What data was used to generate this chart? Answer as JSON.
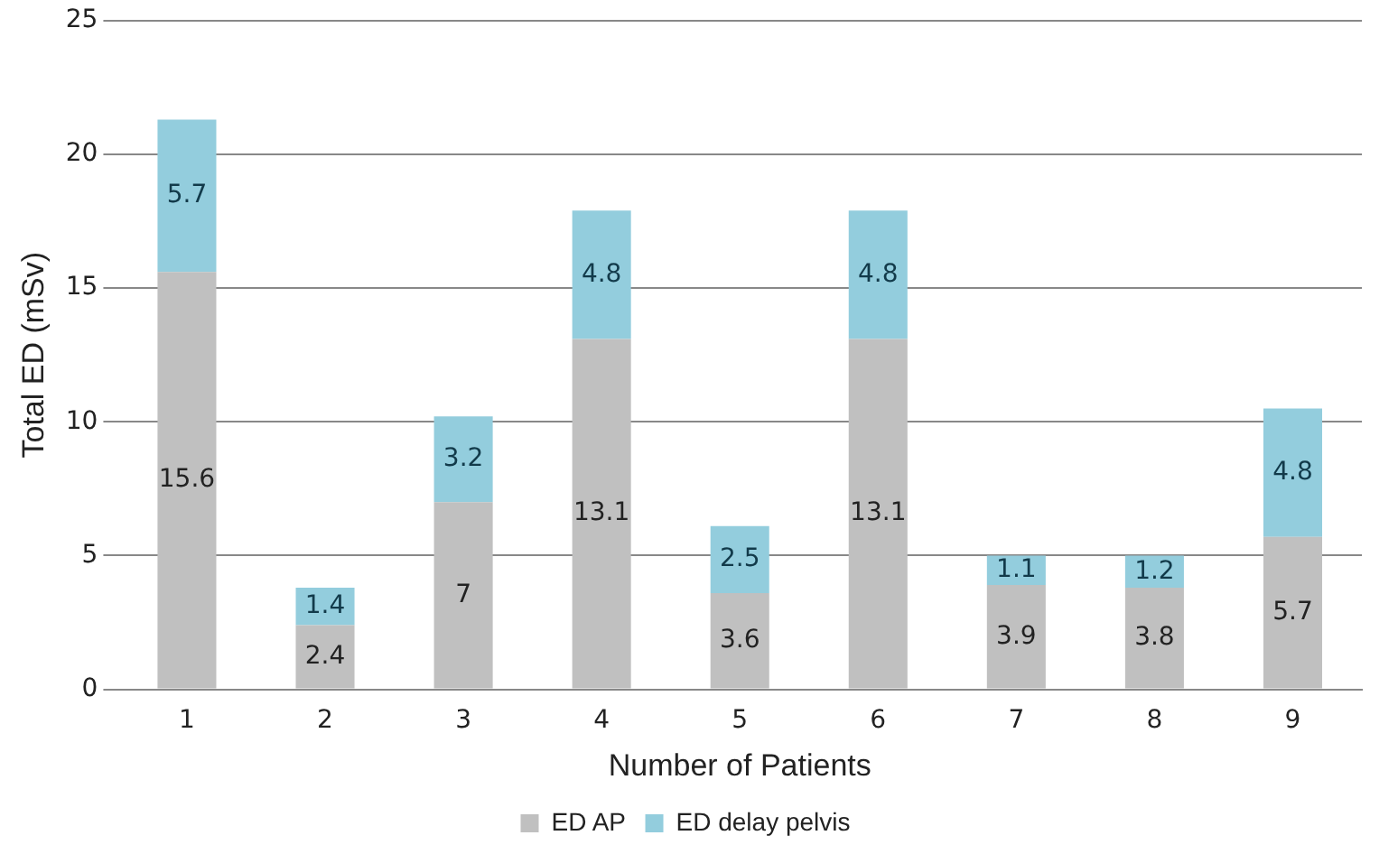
{
  "chart_data": {
    "type": "bar",
    "stacked": true,
    "xlabel": "Number of Patients",
    "ylabel": "Total ED (mSv)",
    "categories": [
      "1",
      "2",
      "3",
      "4",
      "5",
      "6",
      "7",
      "8",
      "9"
    ],
    "series": [
      {
        "name": "ED AP",
        "color": "#c0c0c0",
        "values": [
          15.6,
          2.4,
          7,
          13.1,
          3.6,
          13.1,
          3.9,
          3.8,
          5.7
        ]
      },
      {
        "name": "ED delay pelvis",
        "color": "#93cddd",
        "values": [
          5.7,
          1.4,
          3.2,
          4.8,
          2.5,
          4.8,
          1.1,
          1.2,
          4.8
        ]
      }
    ],
    "ylim": [
      0,
      25
    ],
    "yticks": [
      0,
      5,
      10,
      15,
      20,
      25
    ],
    "grid": "y",
    "legend": "bottom",
    "data_labels": true
  }
}
